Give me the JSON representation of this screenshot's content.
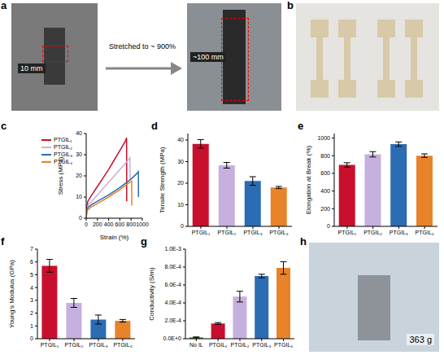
{
  "chart_data": [
    {
      "panel": "c",
      "type": "line",
      "x_label": "Strain (%)",
      "y_label": "Stress (MPa)",
      "xlim": [
        0,
        1000
      ],
      "xticks": [
        0,
        200,
        400,
        600,
        800,
        1000
      ],
      "ylim": [
        0,
        40
      ],
      "yticks": [
        0,
        10,
        20,
        30,
        40
      ],
      "grid": false,
      "legend": "top-left",
      "series": [
        {
          "name": "PTGIL₁",
          "color": "#c8102e",
          "x": [
            0,
            10,
            30,
            100,
            200,
            300,
            400,
            500,
            600,
            700,
            720,
            722
          ],
          "values": [
            0,
            5,
            8,
            11,
            15,
            19,
            23,
            27.5,
            32,
            36.5,
            38,
            8
          ]
        },
        {
          "name": "PTGIL₂",
          "color": "#c6b0de",
          "x": [
            0,
            10,
            30,
            100,
            200,
            300,
            400,
            500,
            600,
            700,
            780,
            782
          ],
          "values": [
            0,
            4,
            6,
            8,
            11,
            14,
            17,
            20,
            23,
            26,
            28.5,
            18
          ]
        },
        {
          "name": "PTGIL₃",
          "color": "#2b6cb3",
          "x": [
            0,
            10,
            30,
            100,
            200,
            400,
            600,
            800,
            900,
            930,
            932
          ],
          "values": [
            0,
            3,
            5,
            6.5,
            8,
            11,
            14.5,
            18.5,
            21,
            22,
            10
          ]
        },
        {
          "name": "PTGIL₄",
          "color": "#e8832a",
          "x": [
            0,
            10,
            30,
            100,
            200,
            400,
            600,
            750,
            810,
            812
          ],
          "values": [
            0,
            2.5,
            4,
            5.5,
            7,
            10,
            13.5,
            16.5,
            17.5,
            6
          ]
        }
      ]
    },
    {
      "panel": "d",
      "type": "bar",
      "y_label": "Tensile Strength (MPa)",
      "categories": [
        "PTGIL₁",
        "PTGIL₂",
        "PTGIL₃",
        "PTGIL₄"
      ],
      "values": [
        38.2,
        28.3,
        21,
        18
      ],
      "errors": [
        2,
        1.3,
        2,
        0.5
      ],
      "colors": [
        "#c8102e",
        "#c6b0de",
        "#2b6cb3",
        "#e8832a"
      ],
      "ylim": [
        0,
        43
      ],
      "yticks": [
        0,
        10,
        20,
        30,
        40
      ],
      "grid": false
    },
    {
      "panel": "e",
      "type": "bar",
      "y_label": "Elongation at Break (%)",
      "categories": [
        "PTGIL₁",
        "PTGIL₂",
        "PTGIL₃",
        "PTGIL₄"
      ],
      "values": [
        695,
        815,
        930,
        800
      ],
      "errors": [
        25,
        30,
        25,
        20
      ],
      "colors": [
        "#c8102e",
        "#c6b0de",
        "#2b6cb3",
        "#e8832a"
      ],
      "ylim": [
        0,
        1050
      ],
      "yticks": [
        0,
        200,
        400,
        600,
        800,
        1000
      ],
      "grid": false
    },
    {
      "panel": "f",
      "type": "bar",
      "y_label": "Young's Modulus (GPa)",
      "categories": [
        "PTGIL₁",
        "PTGIL₂",
        "PTGIL₃",
        "PTGIL₄"
      ],
      "values": [
        5.7,
        2.8,
        1.5,
        1.4
      ],
      "errors": [
        0.5,
        0.35,
        0.35,
        0.1
      ],
      "colors": [
        "#c8102e",
        "#c6b0de",
        "#2b6cb3",
        "#e8832a"
      ],
      "ylim": [
        0,
        7
      ],
      "yticks": [
        0,
        1,
        2,
        3,
        4,
        5,
        6,
        7
      ],
      "grid": false
    },
    {
      "panel": "g",
      "type": "bar",
      "y_label": "Conductivity (S/m)",
      "categories": [
        "No IL",
        "PTGIL₁",
        "PTGIL₂",
        "PTGIL₃",
        "PTGIL₄"
      ],
      "values": [
        1.5e-05,
        0.00017,
        0.00047,
        0.0007,
        0.00079
      ],
      "errors": [
        5e-06,
        1e-05,
        6e-05,
        2e-05,
        7e-05
      ],
      "colors": [
        "#2e9b3a",
        "#c8102e",
        "#c6b0de",
        "#2b6cb3",
        "#e8832a"
      ],
      "ylim": [
        0,
        0.001
      ],
      "yticks": [
        {
          "value": 0,
          "label": "0.0E+0"
        },
        {
          "value": 0.0002,
          "label": "2.0E-4"
        },
        {
          "value": 0.0004,
          "label": "4.0E-4"
        },
        {
          "value": 0.0006,
          "label": "6.0E-4"
        },
        {
          "value": 0.0008,
          "label": "8.0E-4"
        },
        {
          "value": 0.001,
          "label": "1.0E-3"
        }
      ],
      "grid": false
    }
  ],
  "images": [
    {
      "panel": "a",
      "photo_1_label": "10 mm",
      "arrow_label": "Stretched to ~ 900%",
      "photo_2_label": "~100 mm"
    },
    {
      "panel": "b"
    },
    {
      "panel": "h",
      "label": "363 g"
    }
  ]
}
